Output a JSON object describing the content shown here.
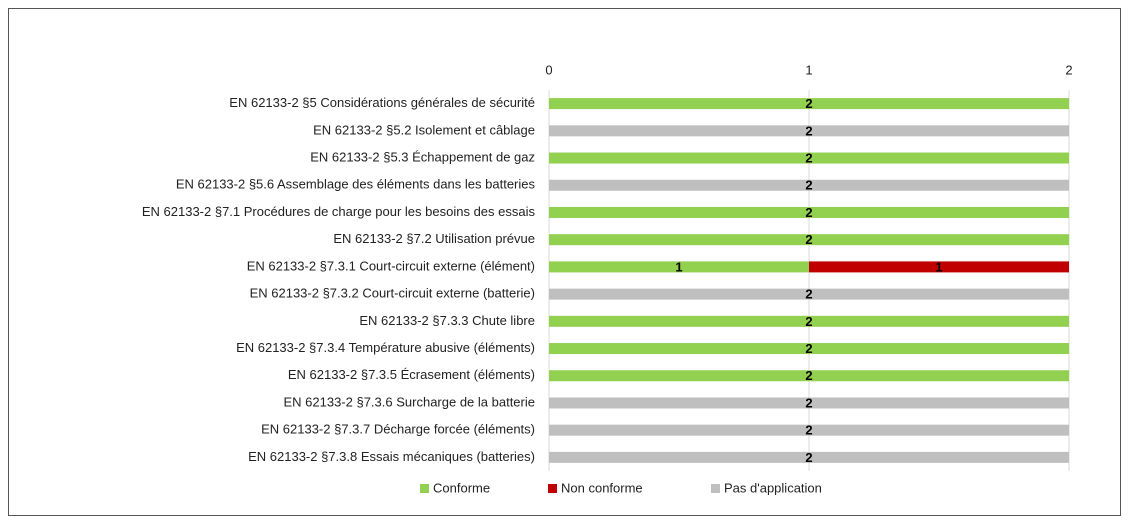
{
  "chart_data": {
    "type": "bar",
    "orientation": "horizontal",
    "stacked": true,
    "categories": [
      "EN 62133-2 §5 Considérations générales de sécurité",
      "EN 62133-2 §5.2 Isolement et câblage",
      "EN 62133-2 §5.3 Échappement de gaz",
      "EN 62133-2 §5.6 Assemblage des éléments dans les batteries",
      "EN 62133-2 §7.1 Procédures de charge pour les besoins des essais",
      "EN 62133-2 §7.2 Utilisation prévue",
      "EN 62133-2 §7.3.1 Court-circuit externe (élément)",
      "EN 62133-2 §7.3.2 Court-circuit externe (batterie)",
      "EN 62133-2 §7.3.3 Chute libre",
      "EN 62133-2 §7.3.4 Température abusive (éléments)",
      "EN 62133-2 §7.3.5 Écrasement (éléments)",
      "EN 62133-2 §7.3.6 Surcharge de la batterie",
      "EN 62133-2 §7.3.7 Décharge forcée (éléments)",
      "EN 62133-2 §7.3.8 Essais mécaniques (batteries)"
    ],
    "series": [
      {
        "name": "Conforme",
        "color": "#92d050",
        "values": [
          2,
          null,
          2,
          null,
          2,
          2,
          1,
          null,
          2,
          2,
          2,
          null,
          null,
          null
        ]
      },
      {
        "name": "Non conforme",
        "color": "#c00000",
        "values": [
          null,
          null,
          null,
          null,
          null,
          null,
          1,
          null,
          null,
          null,
          null,
          null,
          null,
          null
        ]
      },
      {
        "name": "Pas d'application",
        "color": "#bfbfbf",
        "values": [
          null,
          2,
          null,
          2,
          null,
          null,
          null,
          2,
          null,
          null,
          null,
          2,
          2,
          2
        ]
      }
    ],
    "xlim": [
      0,
      2
    ],
    "xticks": [
      0,
      1,
      2
    ],
    "grid": true,
    "legend": "bottom"
  }
}
